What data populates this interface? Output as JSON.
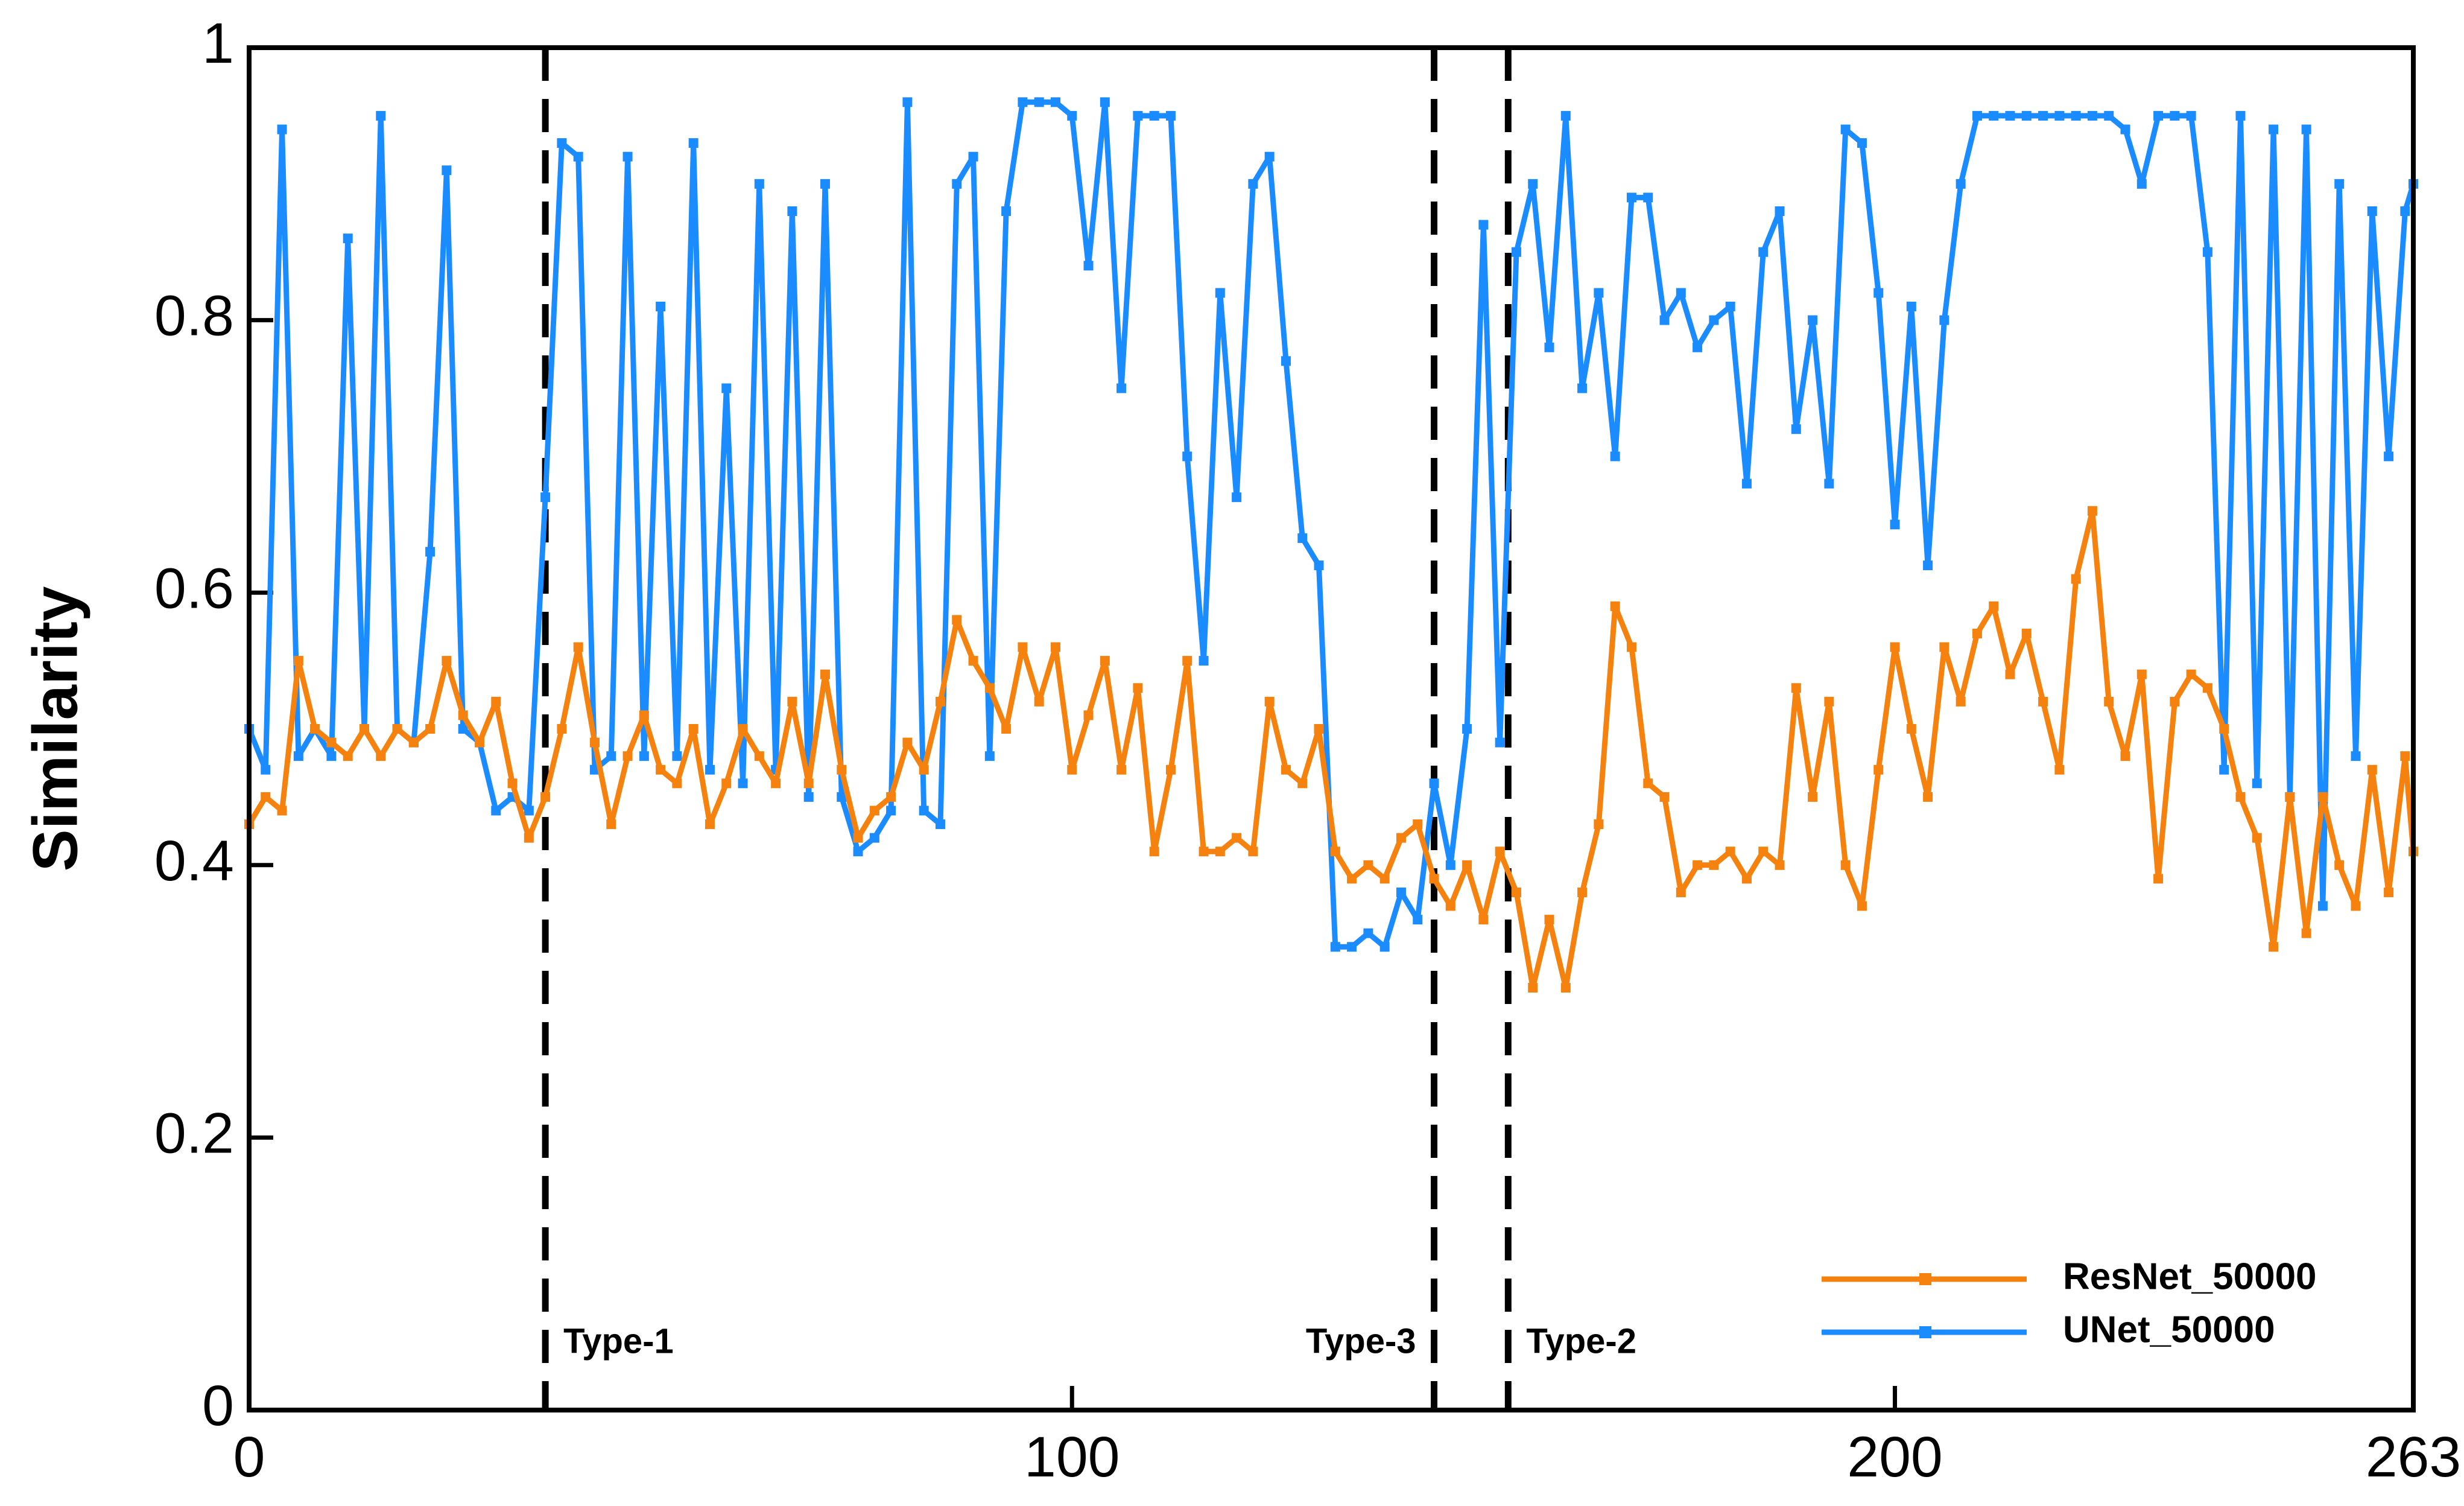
{
  "chart_data": {
    "type": "line",
    "ylabel": "Similarity",
    "x": [
      0,
      2,
      4,
      6,
      8,
      10,
      12,
      14,
      16,
      18,
      20,
      22,
      24,
      26,
      28,
      30,
      32,
      34,
      36,
      38,
      40,
      42,
      44,
      46,
      48,
      50,
      52,
      54,
      56,
      58,
      60,
      62,
      64,
      66,
      68,
      70,
      72,
      74,
      76,
      78,
      80,
      82,
      84,
      86,
      88,
      90,
      92,
      94,
      96,
      98,
      100,
      102,
      104,
      106,
      108,
      110,
      112,
      114,
      116,
      118,
      120,
      122,
      124,
      126,
      128,
      130,
      132,
      134,
      136,
      138,
      140,
      142,
      144,
      146,
      148,
      150,
      152,
      154,
      156,
      158,
      160,
      162,
      164,
      166,
      168,
      170,
      172,
      174,
      176,
      178,
      180,
      182,
      184,
      186,
      188,
      190,
      192,
      194,
      196,
      198,
      200,
      202,
      204,
      206,
      208,
      210,
      212,
      214,
      216,
      218,
      220,
      222,
      224,
      226,
      228,
      230,
      232,
      234,
      236,
      238,
      240,
      242,
      244,
      246,
      248,
      250,
      252,
      254,
      256,
      258,
      260,
      262,
      263
    ],
    "series": [
      {
        "name": "UNet_50000",
        "color": "#1a8cff",
        "values": [
          0.5,
          0.47,
          0.94,
          0.48,
          0.5,
          0.48,
          0.86,
          0.5,
          0.95,
          0.5,
          0.49,
          0.63,
          0.91,
          0.5,
          0.49,
          0.44,
          0.45,
          0.44,
          0.67,
          0.93,
          0.92,
          0.47,
          0.48,
          0.92,
          0.48,
          0.81,
          0.48,
          0.93,
          0.47,
          0.75,
          0.46,
          0.9,
          0.47,
          0.88,
          0.45,
          0.9,
          0.45,
          0.41,
          0.42,
          0.44,
          0.96,
          0.44,
          0.43,
          0.9,
          0.92,
          0.48,
          0.88,
          0.96,
          0.96,
          0.96,
          0.95,
          0.84,
          0.96,
          0.75,
          0.95,
          0.95,
          0.95,
          0.7,
          0.55,
          0.82,
          0.67,
          0.9,
          0.92,
          0.77,
          0.64,
          0.62,
          0.34,
          0.34,
          0.35,
          0.34,
          0.38,
          0.36,
          0.46,
          0.4,
          0.5,
          0.87,
          0.49,
          0.85,
          0.9,
          0.78,
          0.95,
          0.75,
          0.82,
          0.7,
          0.89,
          0.89,
          0.8,
          0.82,
          0.78,
          0.8,
          0.81,
          0.68,
          0.85,
          0.88,
          0.72,
          0.8,
          0.68,
          0.94,
          0.93,
          0.82,
          0.65,
          0.81,
          0.62,
          0.8,
          0.9,
          0.95,
          0.95,
          0.95,
          0.95,
          0.95,
          0.95,
          0.95,
          0.95,
          0.95,
          0.94,
          0.9,
          0.95,
          0.95,
          0.95,
          0.85,
          0.47,
          0.95,
          0.46,
          0.94,
          0.45,
          0.94,
          0.37,
          0.9,
          0.48,
          0.88,
          0.7,
          0.88,
          0.9
        ]
      },
      {
        "name": "ResNet_50000",
        "color": "#f5820f",
        "values": [
          0.43,
          0.45,
          0.44,
          0.55,
          0.5,
          0.49,
          0.48,
          0.5,
          0.48,
          0.5,
          0.49,
          0.5,
          0.55,
          0.51,
          0.49,
          0.52,
          0.46,
          0.42,
          0.45,
          0.5,
          0.56,
          0.49,
          0.43,
          0.48,
          0.51,
          0.47,
          0.46,
          0.5,
          0.43,
          0.46,
          0.5,
          0.48,
          0.46,
          0.52,
          0.46,
          0.54,
          0.47,
          0.42,
          0.44,
          0.45,
          0.49,
          0.47,
          0.52,
          0.58,
          0.55,
          0.53,
          0.5,
          0.56,
          0.52,
          0.56,
          0.47,
          0.51,
          0.55,
          0.47,
          0.53,
          0.41,
          0.47,
          0.55,
          0.41,
          0.41,
          0.42,
          0.41,
          0.52,
          0.47,
          0.46,
          0.5,
          0.41,
          0.39,
          0.4,
          0.39,
          0.42,
          0.43,
          0.39,
          0.37,
          0.4,
          0.36,
          0.41,
          0.38,
          0.31,
          0.36,
          0.31,
          0.38,
          0.43,
          0.59,
          0.56,
          0.46,
          0.45,
          0.38,
          0.4,
          0.4,
          0.41,
          0.39,
          0.41,
          0.4,
          0.53,
          0.45,
          0.52,
          0.4,
          0.37,
          0.47,
          0.56,
          0.5,
          0.45,
          0.56,
          0.52,
          0.57,
          0.59,
          0.54,
          0.57,
          0.52,
          0.47,
          0.61,
          0.66,
          0.52,
          0.48,
          0.54,
          0.39,
          0.52,
          0.54,
          0.53,
          0.5,
          0.45,
          0.42,
          0.34,
          0.45,
          0.35,
          0.45,
          0.4,
          0.37,
          0.47,
          0.38,
          0.48,
          0.41
        ]
      }
    ],
    "legend_order": [
      "ResNet_50000",
      "UNet_50000"
    ],
    "xlim": [
      0,
      263
    ],
    "xticks": [
      0,
      100,
      200,
      263
    ],
    "ylim": [
      0,
      1
    ],
    "yticks": [
      0,
      0.2,
      0.4,
      0.6,
      0.8,
      1
    ],
    "legend": "lower right",
    "annotations": [
      {
        "x": 36,
        "label": "Type-1"
      },
      {
        "x": 144,
        "label": "Type-3"
      },
      {
        "x": 153,
        "label": "Type-2"
      }
    ]
  }
}
